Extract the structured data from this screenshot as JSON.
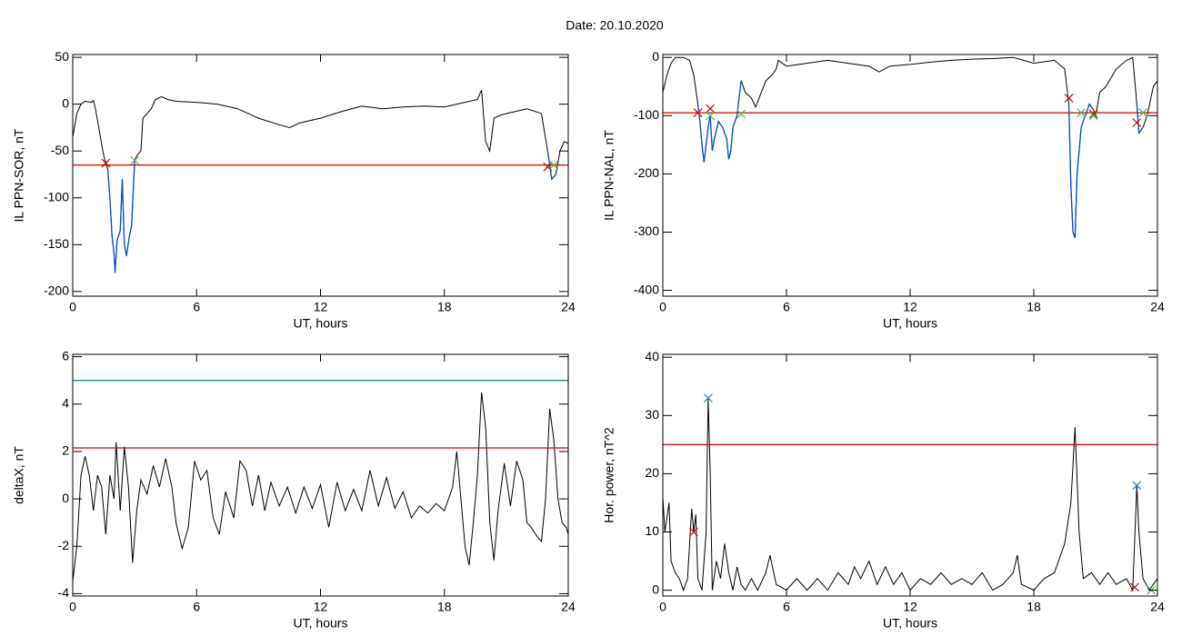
{
  "title": "Date:  20.10.2020",
  "chart_data": [
    {
      "type": "line",
      "xlabel": "UT, hours",
      "ylabel": "IL PPN-SOR, nT",
      "xlim": [
        0,
        24
      ],
      "ylim": [
        -205,
        53
      ],
      "xticks": [
        0,
        6,
        12,
        18,
        24
      ],
      "yticks": [
        -200,
        -150,
        -100,
        -50,
        0,
        50
      ],
      "series": [
        {
          "color": "#000000",
          "style": "line",
          "x": [
            0,
            0.2,
            0.4,
            0.6,
            0.9,
            1.0,
            1.1,
            1.3,
            1.5,
            1.7,
            1.8,
            1.9,
            2.0,
            2.05,
            2.15,
            2.3,
            2.4,
            2.5,
            2.6,
            2.75,
            2.85,
            3.0,
            3.1,
            3.3,
            3.4,
            3.6,
            3.8,
            4.0,
            4.3,
            4.6,
            5,
            6,
            7,
            8,
            9,
            10,
            10.5,
            11,
            12,
            13,
            14,
            15,
            16,
            17,
            18,
            19,
            19.6,
            19.8,
            20.0,
            20.2,
            20.4,
            20.7,
            21,
            22,
            22.7,
            23.0,
            23.2,
            23.4,
            23.6,
            23.8,
            24
          ],
          "values": [
            -35,
            -10,
            0,
            3,
            2,
            4,
            -5,
            -30,
            -55,
            -70,
            -100,
            -140,
            -160,
            -180,
            -145,
            -135,
            -80,
            -150,
            -162,
            -140,
            -130,
            -60,
            -55,
            -50,
            -15,
            -10,
            -5,
            5,
            8,
            5,
            3,
            2,
            0,
            -5,
            -15,
            -22,
            -25,
            -20,
            -15,
            -8,
            -2,
            -5,
            -3,
            -2,
            -3,
            2,
            5,
            15,
            -40,
            -50,
            -15,
            -12,
            -10,
            -5,
            -10,
            -50,
            -80,
            -75,
            -50,
            -40,
            -42
          ]
        },
        {
          "color": "#0050d0",
          "style": "line",
          "x": [
            1.7,
            1.8,
            1.9,
            2.0,
            2.05,
            2.15,
            2.3,
            2.4,
            2.5,
            2.6,
            2.75,
            2.85,
            3.0,
            null,
            23.0,
            23.2,
            23.4
          ],
          "values": [
            -70,
            -100,
            -140,
            -160,
            -180,
            -145,
            -135,
            -80,
            -150,
            -162,
            -140,
            -130,
            -60,
            null,
            -50,
            -80,
            -75
          ]
        },
        {
          "color": "#d00000",
          "style": "line",
          "x": [
            0,
            24
          ],
          "values": [
            -65,
            -65
          ]
        },
        {
          "color": "#d00000",
          "style": "markers",
          "x": [
            1.6,
            23.0
          ],
          "values": [
            -63,
            -67
          ]
        },
        {
          "color": "#40c040",
          "style": "markers",
          "x": [
            3.0,
            23.3
          ],
          "values": [
            -60,
            -65
          ]
        }
      ]
    },
    {
      "type": "line",
      "xlabel": "UT, hours",
      "ylabel": "IL PPN-NAL, nT",
      "xlim": [
        0,
        24
      ],
      "ylim": [
        -410,
        5
      ],
      "xticks": [
        0,
        6,
        12,
        18,
        24
      ],
      "yticks": [
        -400,
        -300,
        -200,
        -100,
        0
      ],
      "series": [
        {
          "color": "#000000",
          "style": "line",
          "x": [
            0,
            0.2,
            0.4,
            0.6,
            1.0,
            1.3,
            1.5,
            1.7,
            1.8,
            1.9,
            2.0,
            2.1,
            2.2,
            2.3,
            2.4,
            2.5,
            2.7,
            2.9,
            3.1,
            3.2,
            3.3,
            3.4,
            3.6,
            3.8,
            4.0,
            4.3,
            4.5,
            5.0,
            5.3,
            5.5,
            5.6,
            6,
            7,
            8,
            9,
            10,
            10.5,
            11,
            12,
            13,
            14,
            15,
            16,
            17,
            17.5,
            18,
            19,
            19.5,
            19.7,
            19.8,
            19.9,
            20.0,
            20.1,
            20.3,
            20.5,
            20.7,
            20.9,
            21.0,
            21.2,
            21.5,
            22,
            22.5,
            22.8,
            23.0,
            23.1,
            23.3,
            23.5,
            23.8,
            24
          ],
          "values": [
            -60,
            -30,
            -10,
            0,
            0,
            -5,
            -30,
            -80,
            -110,
            -150,
            -180,
            -150,
            -120,
            -100,
            -160,
            -140,
            -110,
            -120,
            -140,
            -175,
            -160,
            -120,
            -100,
            -40,
            -60,
            -70,
            -85,
            -40,
            -30,
            -20,
            -5,
            -15,
            -10,
            -5,
            -10,
            -15,
            -25,
            -15,
            -12,
            -8,
            -5,
            -3,
            -2,
            0,
            -5,
            -10,
            -5,
            -20,
            -80,
            -220,
            -300,
            -310,
            -200,
            -120,
            -100,
            -80,
            -90,
            -100,
            -60,
            -50,
            -20,
            -5,
            0,
            -80,
            -130,
            -120,
            -100,
            -50,
            -40
          ]
        },
        {
          "color": "#0050d0",
          "style": "line",
          "x": [
            1.7,
            1.8,
            1.9,
            2.0,
            2.1,
            2.2,
            2.3,
            2.4,
            2.5,
            2.7,
            2.9,
            3.1,
            3.2,
            3.3,
            3.4,
            3.6,
            3.8,
            null,
            19.7,
            19.8,
            19.9,
            20.0,
            20.1,
            20.3,
            20.5,
            20.7,
            null,
            23.0,
            23.1,
            23.3
          ],
          "values": [
            -80,
            -110,
            -150,
            -180,
            -150,
            -120,
            -100,
            -160,
            -140,
            -110,
            -120,
            -140,
            -175,
            -160,
            -120,
            -100,
            -40,
            null,
            -80,
            -220,
            -300,
            -310,
            -200,
            -120,
            -100,
            -80,
            null,
            -80,
            -130,
            -120
          ]
        },
        {
          "color": "#d00000",
          "style": "line",
          "x": [
            0,
            24
          ],
          "values": [
            -95,
            -95
          ]
        },
        {
          "color": "#d00000",
          "style": "markers",
          "x": [
            1.7,
            2.3,
            19.7,
            20.9,
            23.0
          ],
          "values": [
            -95,
            -88,
            -70,
            -97,
            -112
          ]
        },
        {
          "color": "#40c040",
          "style": "markers",
          "x": [
            2.3,
            3.8,
            20.3,
            20.9,
            23.3
          ],
          "values": [
            -100,
            -97,
            -95,
            -100,
            -95
          ]
        }
      ]
    },
    {
      "type": "line",
      "xlabel": "UT, hours",
      "ylabel": "deltaX, nT",
      "xlim": [
        0,
        24
      ],
      "ylim": [
        -4.1,
        6.1
      ],
      "xticks": [
        0,
        6,
        12,
        18,
        24
      ],
      "yticks": [
        -4,
        -2,
        0,
        2,
        4,
        6
      ],
      "series": [
        {
          "color": "#000000",
          "style": "line",
          "x": [
            0,
            0.2,
            0.4,
            0.6,
            0.8,
            1.0,
            1.2,
            1.4,
            1.6,
            1.8,
            2.0,
            2.1,
            2.3,
            2.5,
            2.7,
            2.9,
            3.1,
            3.3,
            3.6,
            3.9,
            4.2,
            4.5,
            4.8,
            5.0,
            5.3,
            5.6,
            5.9,
            6.2,
            6.5,
            6.8,
            7.1,
            7.4,
            7.8,
            8.1,
            8.4,
            8.7,
            9.0,
            9.3,
            9.6,
            10,
            10.4,
            10.8,
            11.2,
            11.6,
            12,
            12.4,
            12.8,
            13.2,
            13.6,
            14,
            14.4,
            14.8,
            15.2,
            15.6,
            16,
            16.4,
            16.8,
            17.2,
            17.6,
            18,
            18.4,
            18.6,
            18.8,
            19.0,
            19.2,
            19.4,
            19.6,
            19.8,
            20.0,
            20.2,
            20.4,
            20.6,
            20.9,
            21.2,
            21.5,
            21.8,
            22,
            22.2,
            22.5,
            22.7,
            22.9,
            23.1,
            23.3,
            23.5,
            23.7,
            23.9,
            24
          ],
          "values": [
            -3.5,
            -2,
            1,
            1.8,
            1,
            -0.5,
            1,
            0.5,
            -1.5,
            1,
            0,
            2.4,
            -0.5,
            2.2,
            0.5,
            -2.7,
            -0.5,
            0.8,
            0.2,
            1.4,
            0.5,
            1.7,
            0.5,
            -1,
            -2.1,
            -1.2,
            1.6,
            0.8,
            1.2,
            -0.8,
            -1.5,
            0.3,
            -0.8,
            1.6,
            1.2,
            -0.3,
            1.0,
            -0.5,
            0.7,
            -0.3,
            0.5,
            -0.6,
            0.5,
            -0.4,
            0.6,
            -1.2,
            0.7,
            -0.5,
            0.4,
            -0.5,
            1.2,
            -0.3,
            0.9,
            -0.4,
            0.3,
            -0.8,
            -0.3,
            -0.6,
            -0.2,
            -0.5,
            0.5,
            2.0,
            0,
            -2,
            -2.8,
            -1,
            1,
            4.5,
            3,
            -1,
            -2.6,
            -0.5,
            1.5,
            -0.3,
            1.6,
            0.8,
            -1,
            -1.2,
            -1.6,
            -1.8,
            0,
            3.8,
            2.5,
            0,
            -1,
            -1.2,
            -1.5
          ]
        },
        {
          "color": "#1a8a9a",
          "style": "line",
          "x": [
            0,
            24
          ],
          "values": [
            5,
            5
          ]
        },
        {
          "color": "#d00000",
          "style": "line",
          "x": [
            0,
            24
          ],
          "values": [
            2.15,
            2.15
          ]
        }
      ]
    },
    {
      "type": "line",
      "xlabel": "UT, hours",
      "ylabel": "Hor. power, nT^2",
      "xlim": [
        0,
        24
      ],
      "ylim": [
        -1,
        40.5
      ],
      "xticks": [
        0,
        6,
        12,
        18,
        24
      ],
      "yticks": [
        0,
        10,
        20,
        30,
        40
      ],
      "series": [
        {
          "color": "#000000",
          "style": "line",
          "x": [
            0,
            0.1,
            0.3,
            0.4,
            0.6,
            0.8,
            1.0,
            1.2,
            1.4,
            1.5,
            1.6,
            1.7,
            1.9,
            2.1,
            2.2,
            2.3,
            2.4,
            2.6,
            2.8,
            3.0,
            3.2,
            3.4,
            3.6,
            3.8,
            4.0,
            4.3,
            4.6,
            5.0,
            5.2,
            5.5,
            6,
            6.5,
            7,
            7.5,
            8,
            8.5,
            9,
            9.3,
            9.6,
            10,
            10.4,
            10.8,
            11.2,
            11.6,
            12,
            12.5,
            13,
            13.5,
            14,
            14.5,
            15,
            15.5,
            16,
            16.5,
            17,
            17.2,
            17.4,
            18,
            18.5,
            19,
            19.5,
            19.8,
            20.0,
            20.2,
            20.4,
            20.8,
            21.2,
            21.6,
            22,
            22.5,
            22.8,
            23.0,
            23.1,
            23.3,
            23.6,
            24
          ],
          "values": [
            16,
            10,
            15,
            5,
            3,
            2,
            0,
            2,
            14,
            10,
            13,
            2,
            0,
            10,
            33,
            20,
            0,
            5,
            2,
            8,
            3,
            0,
            4,
            1,
            0,
            2,
            0,
            3,
            6,
            1,
            0,
            2,
            0,
            2,
            0,
            3,
            1,
            4,
            2,
            5,
            1,
            4,
            1,
            3,
            0,
            2,
            1,
            3,
            1,
            2,
            1,
            3,
            0,
            1,
            3,
            6,
            1,
            0,
            2,
            3,
            8,
            15,
            28,
            10,
            2,
            3,
            1,
            3,
            1,
            2,
            0,
            18,
            10,
            2,
            0,
            2
          ]
        },
        {
          "color": "#d00000",
          "style": "line",
          "x": [
            0,
            24
          ],
          "values": [
            25,
            25
          ]
        },
        {
          "color": "#2a7fd0",
          "style": "markers",
          "x": [
            2.2,
            23.0
          ],
          "values": [
            33,
            18
          ]
        },
        {
          "color": "#d00000",
          "style": "markers",
          "x": [
            1.5,
            22.9
          ],
          "values": [
            10,
            0.5
          ]
        },
        {
          "color": "#40c040",
          "style": "markers",
          "x": [
            23.7
          ],
          "values": [
            0
          ]
        }
      ]
    }
  ]
}
